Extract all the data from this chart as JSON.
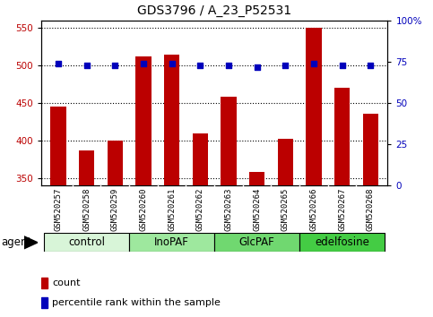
{
  "title": "GDS3796 / A_23_P52531",
  "samples": [
    "GSM520257",
    "GSM520258",
    "GSM520259",
    "GSM520260",
    "GSM520261",
    "GSM520262",
    "GSM520263",
    "GSM520264",
    "GSM520265",
    "GSM520266",
    "GSM520267",
    "GSM520268"
  ],
  "counts": [
    445,
    387,
    400,
    512,
    515,
    410,
    458,
    358,
    402,
    550,
    470,
    436
  ],
  "percentile_ranks": [
    74,
    73,
    73,
    74,
    74,
    73,
    73,
    72,
    73,
    74,
    73,
    73
  ],
  "groups": [
    {
      "label": "control",
      "start": 0,
      "end": 3,
      "color": "#d8f5d8"
    },
    {
      "label": "InoPAF",
      "start": 3,
      "end": 6,
      "color": "#9ee89e"
    },
    {
      "label": "GlcPAF",
      "start": 6,
      "end": 9,
      "color": "#70d870"
    },
    {
      "label": "edelfosine",
      "start": 9,
      "end": 12,
      "color": "#44cc44"
    }
  ],
  "ylim_left": [
    340,
    560
  ],
  "ylim_right": [
    0,
    100
  ],
  "yticks_left": [
    350,
    400,
    450,
    500,
    550
  ],
  "yticks_right": [
    0,
    25,
    50,
    75,
    100
  ],
  "bar_color": "#bb0000",
  "dot_color": "#0000bb",
  "bar_width": 0.55,
  "bg_color_plot": "#ffffff",
  "bg_color_fig": "#ffffff",
  "title_fontsize": 10,
  "tick_fontsize": 6.5,
  "legend_fontsize": 8,
  "group_label_fontsize": 8.5,
  "agent_fontsize": 8.5,
  "xlabels_bg": "#c8c8c8",
  "xlabels_divider": "#ffffff"
}
